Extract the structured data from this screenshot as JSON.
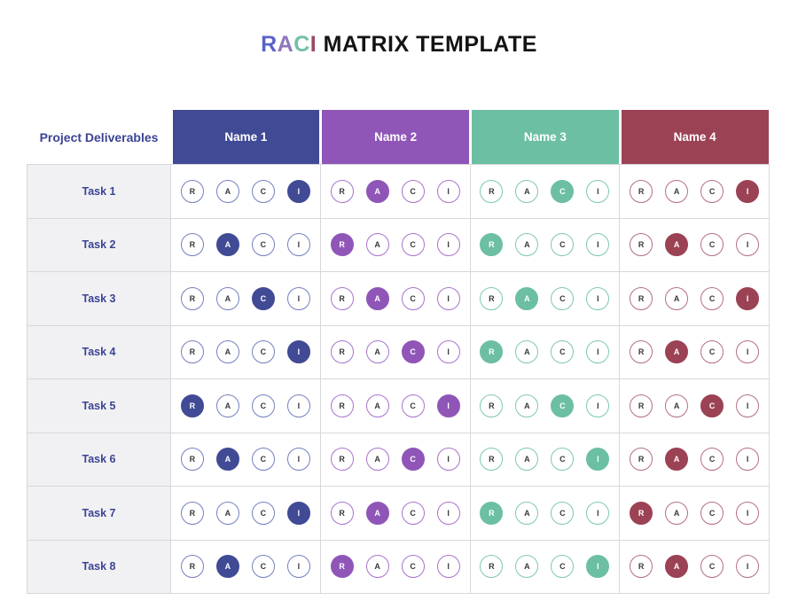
{
  "title": {
    "letters": [
      {
        "char": "R",
        "color": "#5a63c7"
      },
      {
        "char": "A",
        "color": "#8f76bd"
      },
      {
        "char": "C",
        "color": "#74c0a6"
      },
      {
        "char": "I",
        "color": "#9c4a5e"
      }
    ],
    "rest": " MATRIX TEMPLATE"
  },
  "table": {
    "corner_header": "Project Deliverables",
    "raci_letters": [
      "R",
      "A",
      "C",
      "I"
    ],
    "columns": [
      {
        "label": "Name 1",
        "color": "#414a94",
        "outline": "#7580bf"
      },
      {
        "label": "Name 2",
        "color": "#8f56b8",
        "outline": "#a873cd"
      },
      {
        "label": "Name 3",
        "color": "#6cbfa3",
        "outline": "#7fc8b0"
      },
      {
        "label": "Name 4",
        "color": "#9c4255",
        "outline": "#b4717f"
      }
    ],
    "rows": [
      {
        "task": "Task 1",
        "selected": [
          "I",
          "A",
          "C",
          "I"
        ]
      },
      {
        "task": "Task 2",
        "selected": [
          "A",
          "R",
          "R",
          "A"
        ]
      },
      {
        "task": "Task 3",
        "selected": [
          "C",
          "A",
          "A",
          "I"
        ]
      },
      {
        "task": "Task 4",
        "selected": [
          "I",
          "C",
          "R",
          "A"
        ]
      },
      {
        "task": "Task 5",
        "selected": [
          "R",
          "I",
          "C",
          "C"
        ]
      },
      {
        "task": "Task 6",
        "selected": [
          "A",
          "C",
          "I",
          "A"
        ]
      },
      {
        "task": "Task 7",
        "selected": [
          "I",
          "A",
          "R",
          "R"
        ]
      },
      {
        "task": "Task 8",
        "selected": [
          "A",
          "R",
          "I",
          "A"
        ]
      }
    ]
  }
}
